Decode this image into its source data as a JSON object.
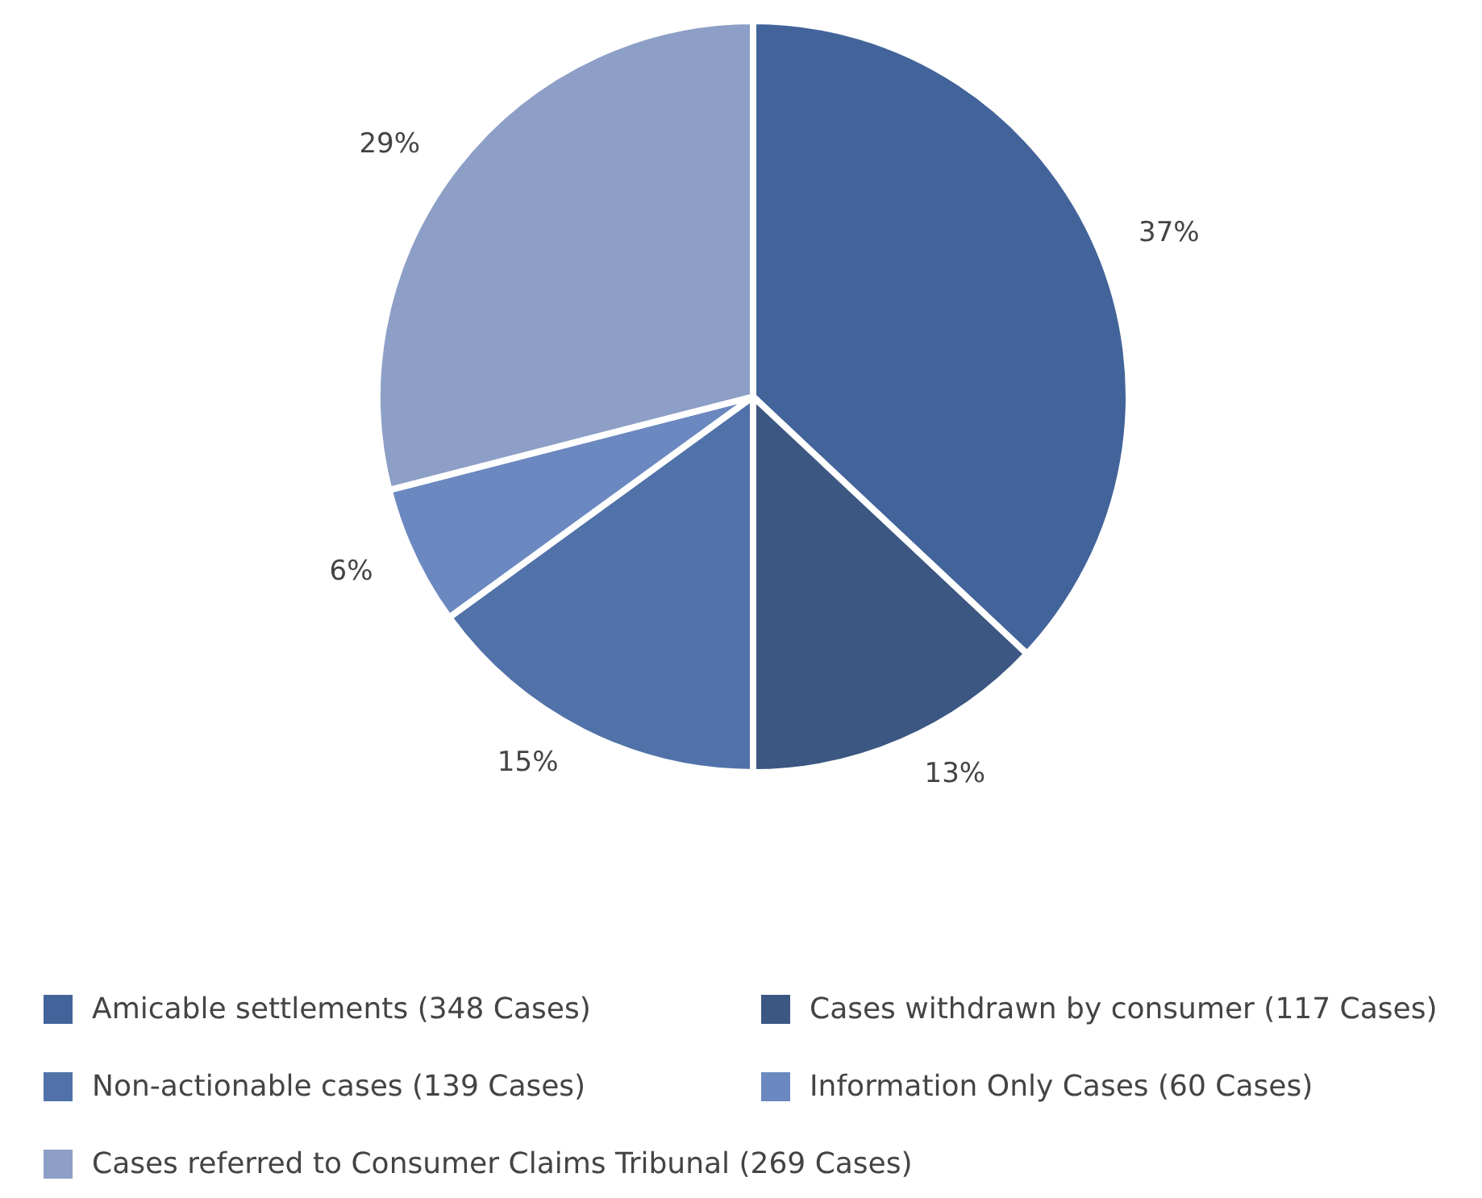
{
  "chart_data": {
    "type": "pie",
    "categories": [
      "Amicable settlements (348 Cases)",
      "Cases withdrawn by consumer (117 Cases)",
      "Non-actionable cases (139 Cases)",
      "Information Only Cases (60 Cases)",
      "Cases referred to Consumer Claims Tribunal (269 Cases)"
    ],
    "values": [
      37,
      13,
      15,
      6,
      29
    ],
    "colors": [
      "#43649a",
      "#3b5782",
      "#5072a8",
      "#6b88c0",
      "#8d9fc6"
    ],
    "value_labels": [
      "37%",
      "13%",
      "15%",
      "6%",
      "29%"
    ],
    "legend": "bottom"
  }
}
